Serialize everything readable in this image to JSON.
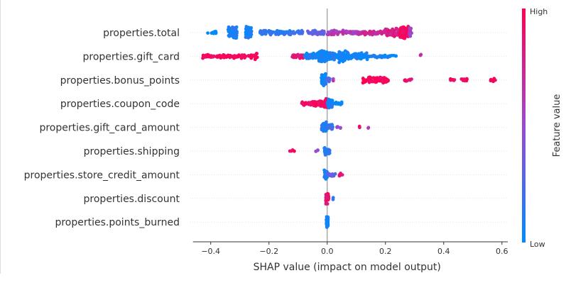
{
  "chart_data": {
    "type": "scatter",
    "subtype": "beeswarm",
    "xlabel": "SHAP value (impact on model output)",
    "xlim": [
      -0.47,
      0.62
    ],
    "xticks": [
      -0.4,
      -0.2,
      0.0,
      0.2,
      0.4,
      0.6
    ],
    "xtick_labels": [
      "−0.4",
      "−0.2",
      "0.0",
      "0.2",
      "0.4",
      "0.6"
    ],
    "colorbar": {
      "title": "Feature value",
      "high_label": "High",
      "low_label": "Low",
      "low_color": "#008bfb",
      "high_color": "#ff0052"
    },
    "features": [
      {
        "name": "properties.total",
        "clusters": [
          [
            -0.41,
            -0.38,
            14,
            0.05
          ],
          [
            -0.34,
            -0.31,
            90,
            0.08
          ],
          [
            -0.28,
            -0.26,
            70,
            0.1
          ],
          [
            -0.23,
            -0.08,
            90,
            0.15
          ],
          [
            -0.07,
            -0.01,
            40,
            0.3
          ],
          [
            0.0,
            0.11,
            70,
            0.6
          ],
          [
            0.11,
            0.2,
            60,
            0.7
          ],
          [
            0.2,
            0.25,
            70,
            0.8
          ],
          [
            0.25,
            0.28,
            110,
            0.95
          ],
          [
            0.28,
            0.29,
            16,
            0.55
          ]
        ]
      },
      {
        "name": "properties.gift_card",
        "clusters": [
          [
            -0.43,
            -0.25,
            90,
            0.97
          ],
          [
            -0.25,
            -0.24,
            10,
            0.97
          ],
          [
            -0.12,
            -0.08,
            25,
            0.85
          ],
          [
            -0.08,
            -0.03,
            50,
            0.08
          ],
          [
            -0.03,
            0.0,
            140,
            0.05
          ],
          [
            0.0,
            0.04,
            50,
            0.05
          ],
          [
            0.04,
            0.08,
            80,
            0.05
          ],
          [
            0.08,
            0.14,
            60,
            0.05
          ],
          [
            0.14,
            0.24,
            30,
            0.05
          ],
          [
            0.32,
            0.32,
            2,
            0.6
          ]
        ]
      },
      {
        "name": "properties.bonus_points",
        "clusters": [
          [
            -0.02,
            -0.005,
            80,
            0.05
          ],
          [
            0.0,
            0.01,
            8,
            0.2
          ],
          [
            0.02,
            0.02,
            2,
            0.6
          ],
          [
            0.12,
            0.21,
            80,
            0.97
          ],
          [
            0.26,
            0.29,
            10,
            0.9
          ],
          [
            0.42,
            0.44,
            6,
            0.95
          ],
          [
            0.46,
            0.48,
            12,
            0.95
          ],
          [
            0.56,
            0.58,
            8,
            0.95
          ]
        ]
      },
      {
        "name": "properties.coupon_code",
        "clusters": [
          [
            -0.09,
            -0.05,
            20,
            0.97
          ],
          [
            -0.05,
            -0.01,
            40,
            0.97
          ],
          [
            -0.01,
            0.0,
            30,
            0.95
          ],
          [
            0.0,
            0.02,
            40,
            0.05
          ],
          [
            0.02,
            0.05,
            12,
            0.05
          ]
        ]
      },
      {
        "name": "properties.gift_card_amount",
        "clusters": [
          [
            -0.02,
            0.0,
            35,
            0.1
          ],
          [
            0.0,
            0.02,
            20,
            0.2
          ],
          [
            0.03,
            0.05,
            6,
            0.5
          ],
          [
            0.11,
            0.11,
            2,
            0.9
          ],
          [
            0.14,
            0.14,
            2,
            0.6
          ]
        ]
      },
      {
        "name": "properties.shipping",
        "clusters": [
          [
            -0.13,
            -0.11,
            4,
            0.97
          ],
          [
            -0.04,
            -0.03,
            4,
            0.5
          ],
          [
            -0.01,
            0.01,
            30,
            0.1
          ]
        ]
      },
      {
        "name": "properties.store_credit_amount",
        "clusters": [
          [
            -0.01,
            0.0,
            30,
            0.1
          ],
          [
            0.0,
            0.03,
            12,
            0.3
          ],
          [
            0.04,
            0.055,
            5,
            0.9
          ]
        ]
      },
      {
        "name": "properties.discount",
        "clusters": [
          [
            -0.005,
            0.005,
            45,
            0.9
          ],
          [
            0.02,
            0.02,
            2,
            0.1
          ]
        ]
      },
      {
        "name": "properties.points_burned",
        "clusters": [
          [
            -0.003,
            0.003,
            45,
            0.05
          ]
        ]
      }
    ]
  }
}
